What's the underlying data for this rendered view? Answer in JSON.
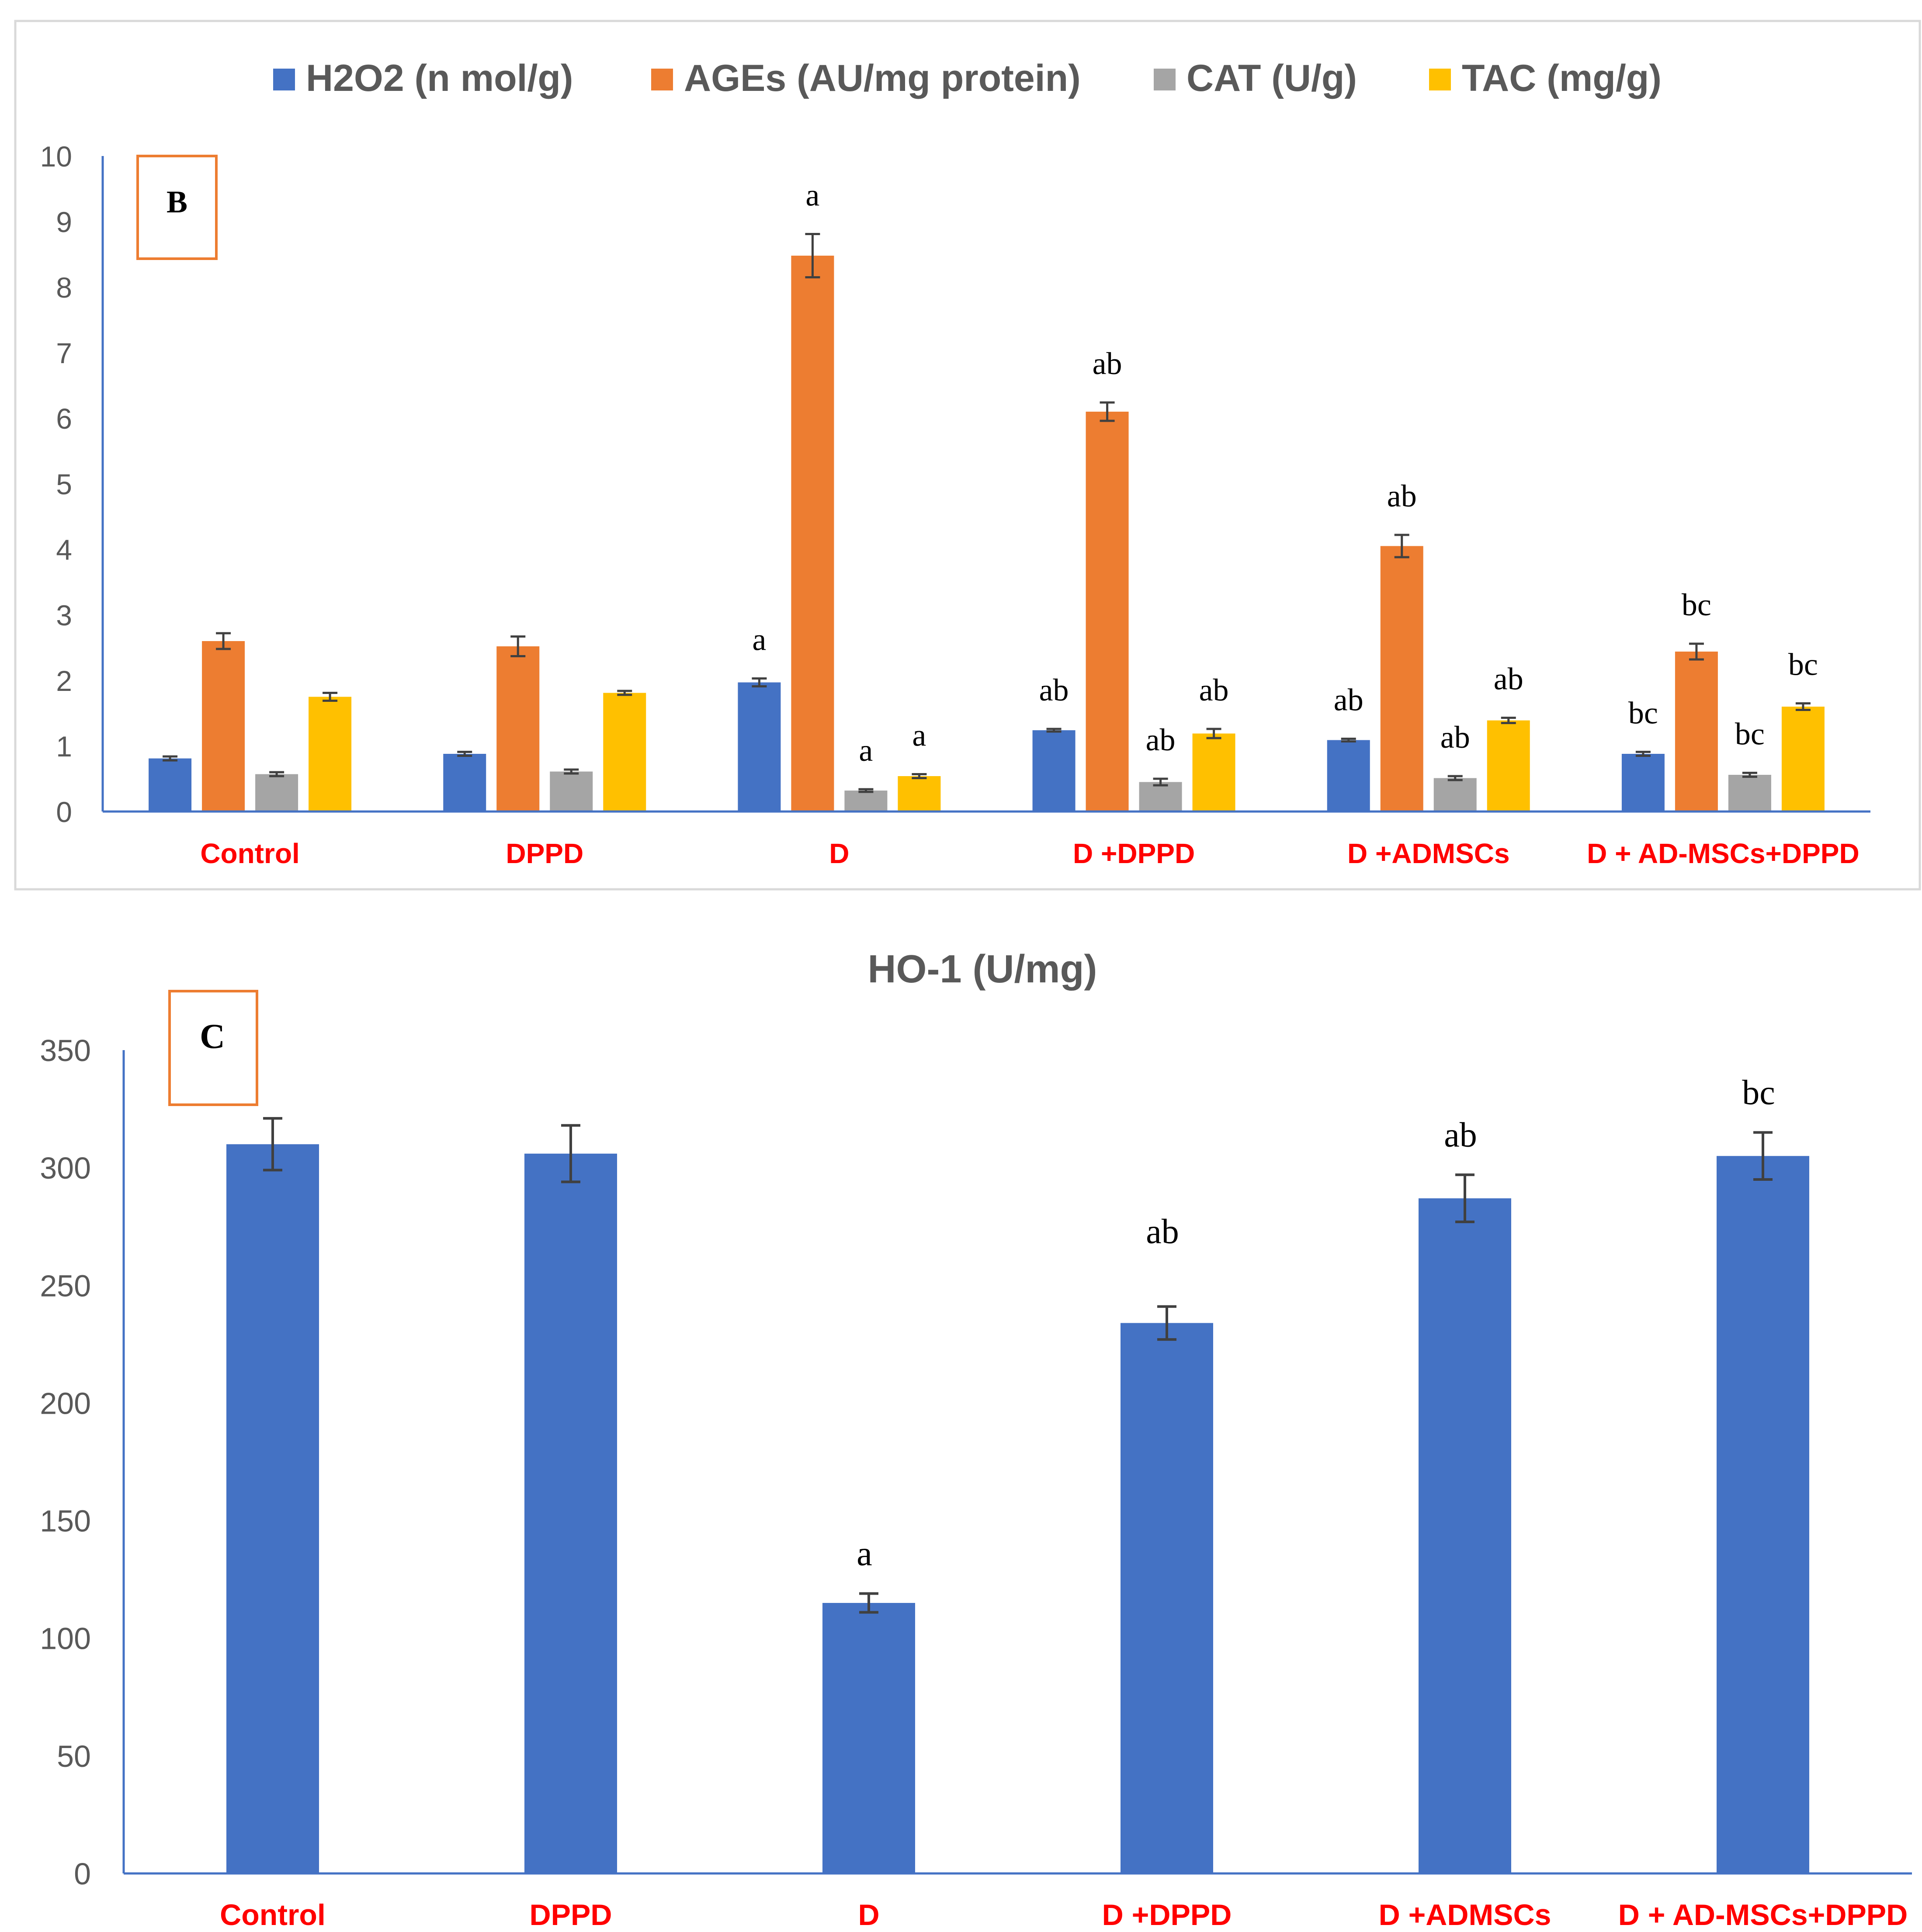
{
  "chart_data": [
    {
      "type": "bar",
      "panel_label": "B",
      "title": "",
      "xlabel": "",
      "ylabel": "",
      "ylim": [
        0,
        10
      ],
      "yticks": [
        0,
        1,
        2,
        3,
        4,
        5,
        6,
        7,
        8,
        9,
        10
      ],
      "legend_position": "top",
      "categories": [
        "Control",
        "DPPD",
        "D",
        "D +DPPD",
        "D +ADMSCs",
        "D + AD-MSCs+DPPD"
      ],
      "series": [
        {
          "name": "H2O2 (n mol/g)",
          "color": "#4472C4",
          "values": [
            0.81,
            0.88,
            1.97,
            1.24,
            1.09,
            0.88
          ],
          "errors": [
            0.03,
            0.03,
            0.06,
            0.02,
            0.02,
            0.03
          ],
          "labels": [
            "",
            "",
            "a",
            "ab",
            "ab",
            "bc"
          ]
        },
        {
          "name": "AGEs (AU/mg protein)",
          "color": "#ED7D31",
          "values": [
            2.6,
            2.52,
            8.48,
            6.1,
            4.05,
            2.44
          ],
          "errors": [
            0.12,
            0.15,
            0.33,
            0.14,
            0.17,
            0.12
          ],
          "labels": [
            "",
            "",
            "a",
            "ab",
            "ab",
            "bc"
          ]
        },
        {
          "name": "CAT (U/g)",
          "color": "#A5A5A5",
          "values": [
            0.57,
            0.61,
            0.32,
            0.45,
            0.51,
            0.56
          ],
          "errors": [
            0.03,
            0.03,
            0.02,
            0.05,
            0.03,
            0.03
          ],
          "labels": [
            "",
            "",
            "a",
            "ab",
            "ab",
            "bc"
          ]
        },
        {
          "name": "TAC  (mg/g)",
          "color": "#FFC000",
          "values": [
            1.75,
            1.81,
            0.54,
            1.19,
            1.39,
            1.6
          ],
          "errors": [
            0.06,
            0.03,
            0.03,
            0.07,
            0.04,
            0.05
          ],
          "labels": [
            "",
            "",
            "a",
            "ab",
            "ab",
            "bc"
          ]
        }
      ]
    },
    {
      "type": "bar",
      "panel_label": "C",
      "title": "HO-1  (U/mg)",
      "xlabel": "",
      "ylabel": "",
      "ylim": [
        0,
        350
      ],
      "yticks": [
        0,
        50,
        100,
        150,
        200,
        250,
        300,
        350
      ],
      "categories": [
        "Control",
        "DPPD",
        "D",
        "D +DPPD",
        "D +ADMSCs",
        "D + AD-MSCs+DPPD"
      ],
      "series": [
        {
          "name": "HO-1  (U/mg)",
          "color": "#4472C4",
          "values": [
            310,
            306,
            115,
            234,
            287,
            305
          ],
          "errors": [
            11,
            12,
            4,
            7,
            10,
            10
          ],
          "labels": [
            "",
            "",
            "a",
            "ab",
            "ab",
            "bc"
          ]
        }
      ]
    }
  ]
}
